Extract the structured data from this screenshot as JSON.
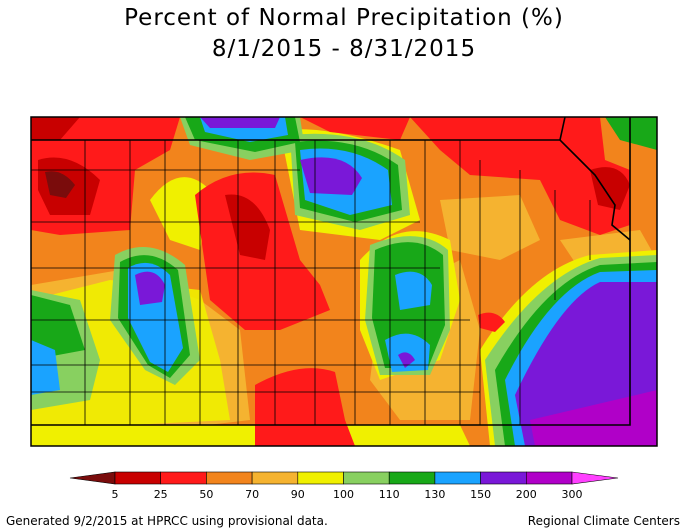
{
  "title": {
    "line1": "Percent of Normal Precipitation (%)",
    "line2": "8/1/2015 - 8/31/2015"
  },
  "legend": {
    "bins": [
      {
        "label": "5",
        "color": "#7a0c0c"
      },
      {
        "label": "25",
        "color": "#c80000"
      },
      {
        "label": "50",
        "color": "#ff1a1a"
      },
      {
        "label": "70",
        "color": "#f2841c"
      },
      {
        "label": "90",
        "color": "#f5b330"
      },
      {
        "label": "100",
        "color": "#f0f000"
      },
      {
        "label": "110",
        "color": "#88d060"
      },
      {
        "label": "130",
        "color": "#18a818"
      },
      {
        "label": "150",
        "color": "#1aa3ff"
      },
      {
        "label": "200",
        "color": "#7a18d8"
      },
      {
        "label": "300",
        "color": "#b000c8"
      }
    ],
    "arrow_left_color": "#7a0c0c",
    "arrow_right_color": "#ff40ff"
  },
  "footer": {
    "left": "Generated 9/2/2015 at HPRCC using provisional data.",
    "right": "Regional Climate Centers"
  }
}
